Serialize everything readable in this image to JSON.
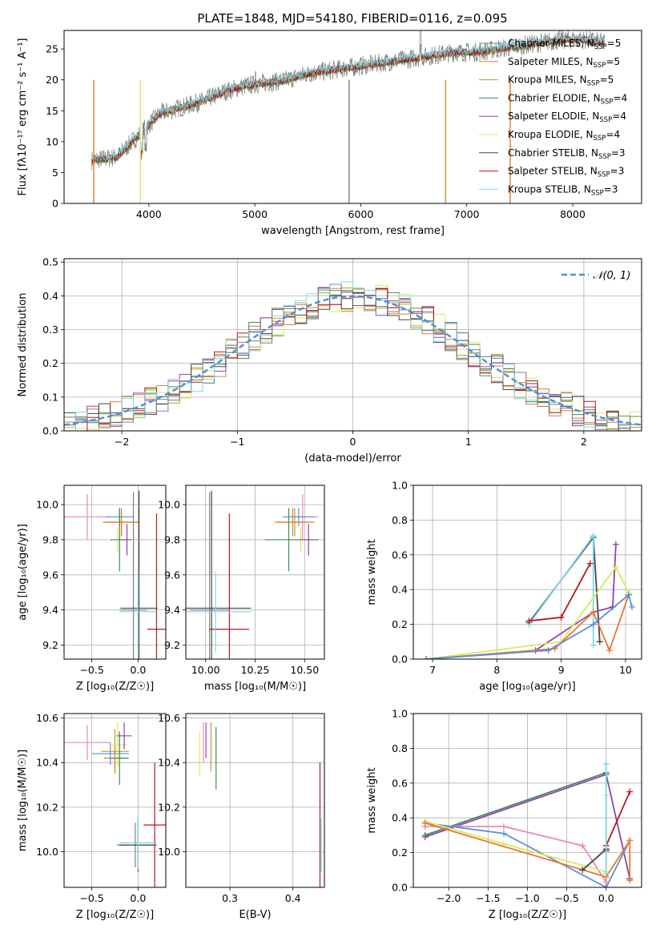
{
  "colors": {
    "grid": "#b0b0b0",
    "normal": "#4a90d9",
    "series": [
      "#7f7f7f",
      "#e37a2e",
      "#b89f2a",
      "#3f8a5a",
      "#8e44ad",
      "#d9e85c",
      "#454545",
      "#b01c1c",
      "#7dd8e8",
      "#e88bb5",
      "#5b8ee0"
    ]
  },
  "chart_data": [
    {
      "id": "spectrum",
      "type": "line",
      "title": "PLATE=1848, MJD=54180, FIBERID=0116, z=0.095",
      "xlabel": "wavelength [Angstrom, rest frame]",
      "ylabel": "Flux [fλ10⁻¹⁷ erg cm⁻² s⁻¹ A⁻¹]",
      "xlim": [
        3200,
        8650
      ],
      "ylim": [
        0,
        28
      ],
      "xticks": [
        "4000",
        "5000",
        "6000",
        "7000",
        "8000"
      ],
      "yticks": [
        "0",
        "5",
        "10",
        "15",
        "20",
        "25"
      ],
      "grid": false,
      "legend_position": "right",
      "continuum_x": [
        3460,
        3700,
        3900,
        4100,
        4300,
        4500,
        4700,
        4900,
        5100,
        5300,
        5500,
        5700,
        5900,
        6100,
        6300,
        6500,
        6700,
        6900,
        7100,
        7300,
        7500,
        7700,
        7900,
        8100,
        8300
      ],
      "continuum_y": [
        7.0,
        7.5,
        11.0,
        14.5,
        15.5,
        16.5,
        18.0,
        19.0,
        19.5,
        20.0,
        21.0,
        21.5,
        22.0,
        22.5,
        23.0,
        23.5,
        24.0,
        24.5,
        24.5,
        25.0,
        25.5,
        26.0,
        26.5,
        26.5,
        26.0
      ],
      "legend": [
        {
          "prefix": "Chabrier MILES, N",
          "sub": "SSP",
          "suffix": "=5"
        },
        {
          "prefix": "Salpeter MILES, N",
          "sub": "SSP",
          "suffix": "=5"
        },
        {
          "prefix": "Kroupa MILES, N",
          "sub": "SSP",
          "suffix": "=5"
        },
        {
          "prefix": "Chabrier ELODIE, N",
          "sub": "SSP",
          "suffix": "=4"
        },
        {
          "prefix": "Salpeter ELODIE, N",
          "sub": "SSP",
          "suffix": "=4"
        },
        {
          "prefix": "Kroupa ELODIE, N",
          "sub": "SSP",
          "suffix": "=4"
        },
        {
          "prefix": "Chabrier STELIB, N",
          "sub": "SSP",
          "suffix": "=3"
        },
        {
          "prefix": "Salpeter STELIB, N",
          "sub": "SSP",
          "suffix": "=3"
        },
        {
          "prefix": "Kroupa STELIB, N",
          "sub": "SSP",
          "suffix": "=3"
        }
      ]
    },
    {
      "id": "residuals",
      "type": "histogram",
      "xlabel": "(data-model)/error",
      "ylabel": "Normed distribution",
      "xlim": [
        -2.5,
        2.5
      ],
      "ylim": [
        0,
        0.51
      ],
      "xticks": [
        "−2",
        "−1",
        "0",
        "1",
        "2"
      ],
      "yticks": [
        "0.0",
        "0.1",
        "0.2",
        "0.3",
        "0.4",
        "0.5"
      ],
      "grid": true,
      "legend_position": "top-right",
      "legend": "𝒩(0, 1)",
      "bin_width": 0.1,
      "bin_start": -2.5,
      "histogram_bins": 50
    },
    {
      "id": "age-vs-Z",
      "type": "errorbar",
      "xlabel": "Z [log₁₀(Z/Z☉)]",
      "ylabel": "age  [log₁₀(age/yr)]",
      "xlim": [
        -0.8,
        0.3
      ],
      "ylim": [
        9.12,
        10.11
      ],
      "xticks": [
        "−0.5",
        "0.0"
      ],
      "yticks": [
        "9.2",
        "9.4",
        "9.6",
        "9.8",
        "10.0"
      ],
      "grid": true,
      "points": [
        {
          "x": -0.55,
          "y": 9.93,
          "xerr": 0.25,
          "yerr": 0.13,
          "color": 9
        },
        {
          "x": -0.2,
          "y": 9.93,
          "xerr": 0.15,
          "yerr": 0.05,
          "color": 10
        },
        {
          "x": -0.18,
          "y": 9.9,
          "xerr": 0.2,
          "yerr": 0.08,
          "color": 2
        },
        {
          "x": -0.18,
          "y": 9.9,
          "xerr": 0.17,
          "yerr": 0.08,
          "color": 1
        },
        {
          "x": -0.22,
          "y": 9.8,
          "xerr": 0.12,
          "yerr": 0.07,
          "color": 5
        },
        {
          "x": -0.2,
          "y": 9.8,
          "xerr": 0.1,
          "yerr": 0.18,
          "color": 3
        },
        {
          "x": -0.12,
          "y": 9.8,
          "xerr": 0.05,
          "yerr": 0.09,
          "color": 4
        },
        {
          "x": -0.05,
          "y": 9.4,
          "xerr": 0.15,
          "yerr": 0.67,
          "color": 0
        },
        {
          "x": 0.01,
          "y": 9.41,
          "xerr": 0.2,
          "yerr": 0.67,
          "color": 6
        },
        {
          "x": 0.2,
          "y": 9.29,
          "xerr": 0.1,
          "yerr": 0.66,
          "color": 7
        },
        {
          "x": 0.0,
          "y": 9.39,
          "xerr": 0.2,
          "yerr": 0.23,
          "color": 8
        }
      ]
    },
    {
      "id": "age-vs-mass",
      "type": "errorbar",
      "xlabel": "mass [log₁₀(M/M☉)]",
      "ylabel": "",
      "xlim": [
        9.9,
        10.6
      ],
      "ylim": [
        9.12,
        10.11
      ],
      "xticks": [
        "10.00",
        "10.25",
        "10.50"
      ],
      "yticks": [
        "9.2",
        "9.4",
        "9.6",
        "9.8",
        "10.0"
      ],
      "grid": true,
      "points": [
        {
          "x": 10.49,
          "y": 9.93,
          "xerr": 0.08,
          "yerr": 0.13,
          "color": 9
        },
        {
          "x": 10.47,
          "y": 9.93,
          "xerr": 0.08,
          "yerr": 0.05,
          "color": 10
        },
        {
          "x": 10.45,
          "y": 9.9,
          "xerr": 0.1,
          "yerr": 0.08,
          "color": 2
        },
        {
          "x": 10.44,
          "y": 9.9,
          "xerr": 0.08,
          "yerr": 0.08,
          "color": 1
        },
        {
          "x": 10.48,
          "y": 9.8,
          "xerr": 0.1,
          "yerr": 0.07,
          "color": 5
        },
        {
          "x": 10.42,
          "y": 9.8,
          "xerr": 0.12,
          "yerr": 0.18,
          "color": 3
        },
        {
          "x": 10.52,
          "y": 9.8,
          "xerr": 0.05,
          "yerr": 0.09,
          "color": 4
        },
        {
          "x": 10.02,
          "y": 9.4,
          "xerr": 0.1,
          "yerr": 0.67,
          "color": 0
        },
        {
          "x": 10.03,
          "y": 9.41,
          "xerr": 0.2,
          "yerr": 0.67,
          "color": 6
        },
        {
          "x": 10.12,
          "y": 9.29,
          "xerr": 0.1,
          "yerr": 0.66,
          "color": 7
        },
        {
          "x": 10.05,
          "y": 9.39,
          "xerr": 0.18,
          "yerr": 0.23,
          "color": 8
        }
      ]
    },
    {
      "id": "weight-vs-age",
      "type": "line",
      "xlabel": "age  [log₁₀(age/yr)]",
      "ylabel": "mass weight",
      "xlim": [
        6.7,
        10.25
      ],
      "ylim": [
        0,
        1.0
      ],
      "xticks": [
        "7",
        "8",
        "9",
        "10"
      ],
      "yticks": [
        "0.0",
        "0.2",
        "0.4",
        "0.6",
        "0.8",
        "1.0"
      ],
      "grid": true,
      "series": [
        {
          "color": 6,
          "x": [
            8.5,
            9.5,
            9.6
          ],
          "y": [
            0.21,
            0.7,
            0.1
          ]
        },
        {
          "color": 8,
          "x": [
            8.5,
            9.5,
            9.5
          ],
          "y": [
            0.2,
            0.71,
            0.08
          ]
        },
        {
          "color": 7,
          "x": [
            8.5,
            9.0,
            9.45
          ],
          "y": [
            0.22,
            0.24,
            0.55
          ]
        },
        {
          "color": 4,
          "x": [
            8.6,
            9.5,
            9.8,
            9.85
          ],
          "y": [
            0.05,
            0.27,
            0.3,
            0.66
          ]
        },
        {
          "color": 5,
          "x": [
            6.9,
            9.0,
            9.85,
            10.05
          ],
          "y": [
            0.0,
            0.1,
            0.53,
            0.38
          ]
        },
        {
          "color": 1,
          "x": [
            6.9,
            8.9,
            9.5,
            9.75,
            10.05
          ],
          "y": [
            0.0,
            0.06,
            0.27,
            0.05,
            0.37
          ]
        },
        {
          "color": 10,
          "x": [
            6.9,
            8.8,
            9.5,
            10.05,
            10.1
          ],
          "y": [
            0.0,
            0.05,
            0.2,
            0.37,
            0.3
          ]
        }
      ]
    },
    {
      "id": "mass-vs-Z",
      "type": "errorbar",
      "xlabel": "Z [log₁₀(Z/Z☉)]",
      "ylabel": "mass [log₁₀(M/M☉)]",
      "xlim": [
        -0.8,
        0.3
      ],
      "ylim": [
        9.84,
        10.62
      ],
      "xticks": [
        "−0.5",
        "0.0"
      ],
      "yticks": [
        "10.0",
        "10.2",
        "10.4",
        "10.6"
      ],
      "grid": true,
      "points": [
        {
          "x": -0.55,
          "y": 10.49,
          "xerr": 0.25,
          "yerr": 0.08,
          "color": 9
        },
        {
          "x": -0.3,
          "y": 10.44,
          "xerr": 0.2,
          "yerr": 0.05,
          "color": 10
        },
        {
          "x": -0.25,
          "y": 10.45,
          "xerr": 0.15,
          "yerr": 0.1,
          "color": 2
        },
        {
          "x": -0.25,
          "y": 10.42,
          "xerr": 0.12,
          "yerr": 0.06,
          "color": 1
        },
        {
          "x": -0.22,
          "y": 10.48,
          "xerr": 0.1,
          "yerr": 0.1,
          "color": 5
        },
        {
          "x": -0.2,
          "y": 10.42,
          "xerr": 0.1,
          "yerr": 0.12,
          "color": 3
        },
        {
          "x": -0.15,
          "y": 10.52,
          "xerr": 0.08,
          "yerr": 0.06,
          "color": 4
        },
        {
          "x": -0.03,
          "y": 10.03,
          "xerr": 0.2,
          "yerr": 0.1,
          "color": 0
        },
        {
          "x": 0.0,
          "y": 10.03,
          "xerr": 0.2,
          "yerr": 0.12,
          "color": 6
        },
        {
          "x": 0.18,
          "y": 10.12,
          "xerr": 0.12,
          "yerr": 0.28,
          "color": 7
        },
        {
          "x": 0.0,
          "y": 10.04,
          "xerr": 0.2,
          "yerr": 0.12,
          "color": 8
        }
      ]
    },
    {
      "id": "mass-vs-ebv",
      "type": "errorbar",
      "xlabel": "E(B-V)",
      "ylabel": "",
      "xlim": [
        0.23,
        0.45
      ],
      "ylim": [
        9.84,
        10.62
      ],
      "xticks": [
        "0.3",
        "0.4"
      ],
      "yticks": [
        "10.0",
        "10.2",
        "10.4",
        "10.6"
      ],
      "grid": true,
      "points": [
        {
          "x": 0.252,
          "y": 10.44,
          "xerr": 0,
          "yerr": 0.1,
          "color": 5
        },
        {
          "x": 0.258,
          "y": 10.49,
          "xerr": 0,
          "yerr": 0.09,
          "color": 9
        },
        {
          "x": 0.262,
          "y": 10.5,
          "xerr": 0,
          "yerr": 0.08,
          "color": 4
        },
        {
          "x": 0.27,
          "y": 10.47,
          "xerr": 0,
          "yerr": 0.11,
          "color": 2
        },
        {
          "x": 0.278,
          "y": 10.42,
          "xerr": 0,
          "yerr": 0.14,
          "color": 3
        },
        {
          "x": 0.443,
          "y": 10.12,
          "xerr": 0,
          "yerr": 0.28,
          "color": 7
        },
        {
          "x": 0.445,
          "y": 10.03,
          "xerr": 0,
          "yerr": 0.12,
          "color": 8
        }
      ]
    },
    {
      "id": "weight-vs-Z",
      "type": "line",
      "xlabel": "Z [log₁₀(Z/Z☉)]",
      "ylabel": "mass weight",
      "xlim": [
        -2.45,
        0.45
      ],
      "ylim": [
        0,
        1.0
      ],
      "xticks": [
        "−2.0",
        "−1.5",
        "−1.0",
        "−0.5",
        "0.0"
      ],
      "yticks": [
        "0.0",
        "0.2",
        "0.4",
        "0.6",
        "0.8",
        "1.0"
      ],
      "grid": true,
      "series": [
        {
          "color": 4,
          "x": [
            -2.3,
            0.0,
            0.3,
            0.3
          ],
          "y": [
            0.29,
            0.65,
            0.05,
            0.05
          ]
        },
        {
          "color": 3,
          "x": [
            -2.3,
            0.0
          ],
          "y": [
            0.3,
            0.66
          ]
        },
        {
          "color": 9,
          "x": [
            -2.3,
            -1.3,
            -0.3,
            0.0
          ],
          "y": [
            0.35,
            0.35,
            0.24,
            0.03
          ]
        },
        {
          "color": 10,
          "x": [
            -2.3,
            -1.3,
            0.0,
            0.3
          ],
          "y": [
            0.37,
            0.31,
            0.0,
            0.27
          ]
        },
        {
          "color": 5,
          "x": [
            -2.3,
            -1.3,
            0.0,
            0.0
          ],
          "y": [
            0.38,
            0.25,
            0.09,
            0.53
          ]
        },
        {
          "color": 1,
          "x": [
            -2.3,
            0.0,
            0.3,
            0.3
          ],
          "y": [
            0.37,
            0.06,
            0.27,
            0.04
          ]
        },
        {
          "color": 7,
          "x": [
            0.0,
            0.0,
            0.3
          ],
          "y": [
            0.22,
            0.24,
            0.55
          ]
        },
        {
          "color": 6,
          "x": [
            -0.3,
            0.0,
            0.0
          ],
          "y": [
            0.1,
            0.22,
            0.21
          ]
        },
        {
          "color": 8,
          "x": [
            0.0,
            0.0
          ],
          "y": [
            0.71,
            0.08
          ]
        }
      ]
    }
  ]
}
